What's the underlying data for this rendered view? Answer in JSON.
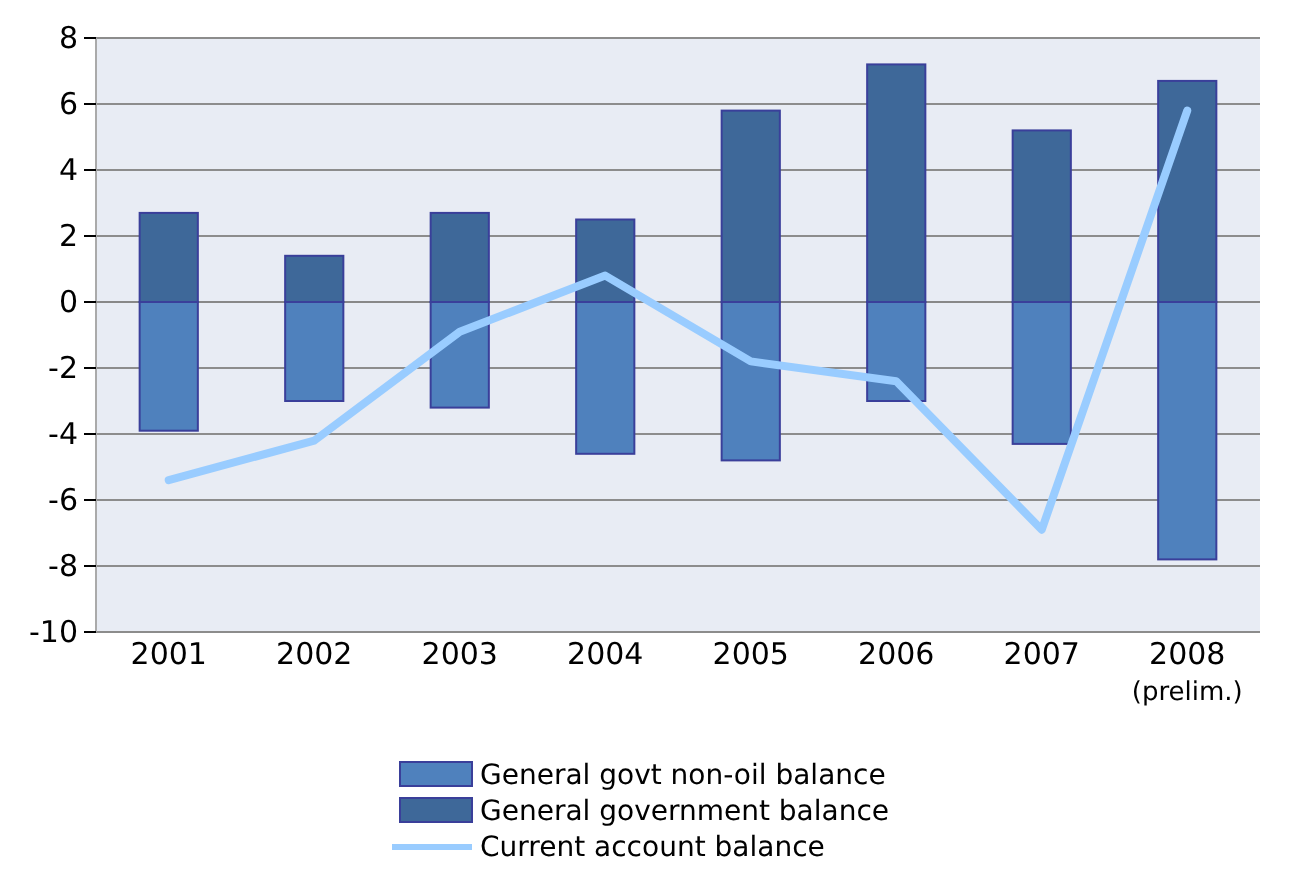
{
  "chart_data": {
    "type": "bar",
    "stacked": true,
    "ref_lines": [
      {
        "axis": "y",
        "value": 0,
        "color": "#888888"
      }
    ],
    "categories": [
      "2001",
      "2002",
      "2003",
      "2004",
      "2005",
      "2006",
      "2007",
      "2008\n(prelim.)"
    ],
    "series": [
      {
        "name": "General govt non-oil balance",
        "color": "#4f81bd",
        "values": [
          -3.9,
          -3.0,
          -3.2,
          -4.6,
          -4.8,
          -3.0,
          -4.3,
          -7.8
        ]
      },
      {
        "name": "General government balance",
        "color": "#3e6899",
        "values": [
          2.7,
          1.4,
          2.7,
          2.5,
          5.8,
          7.2,
          5.2,
          6.7
        ]
      },
      {
        "name": "Current account balance",
        "type": "line",
        "color": "#99ccff",
        "values": [
          -5.4,
          -4.2,
          -0.9,
          0.8,
          -1.8,
          -2.4,
          -6.9,
          5.8
        ]
      }
    ],
    "ylim": [
      -10,
      8
    ],
    "yticks": [
      -10,
      -8,
      -6,
      -4,
      -2,
      0,
      2,
      4,
      6,
      8
    ],
    "grid": "y",
    "legend": "bottom"
  }
}
